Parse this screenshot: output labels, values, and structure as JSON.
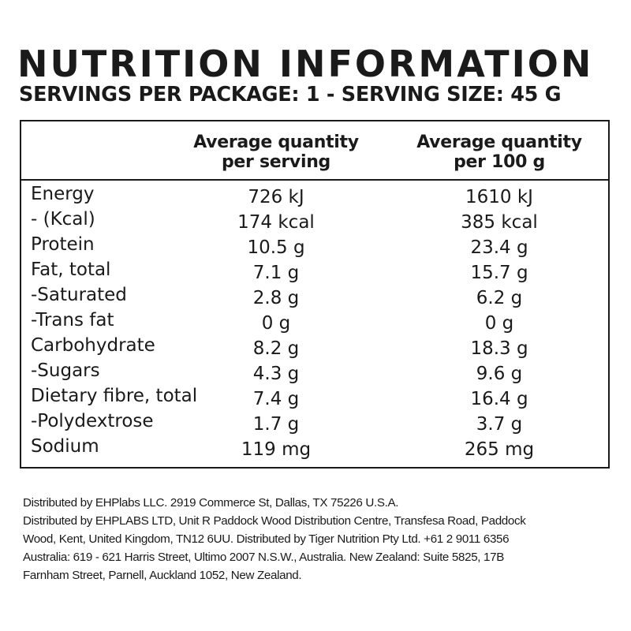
{
  "title": "NUTRITION INFORMATION",
  "subtitle": "SERVINGS PER PACKAGE: 1 - SERVING SIZE: 45 G",
  "table": {
    "columns": [
      {
        "line1": "Average quantity",
        "line2": "per serving"
      },
      {
        "line1": "Average quantity",
        "line2": "per 100 g"
      }
    ],
    "rows": [
      {
        "label": "Energy",
        "per_serving": "726 kJ",
        "per_100g": "1610 kJ"
      },
      {
        "label": "- (Kcal)",
        "per_serving": "174 kcal",
        "per_100g": "385 kcal"
      },
      {
        "label": "Protein",
        "per_serving": "10.5 g",
        "per_100g": "23.4 g"
      },
      {
        "label": "Fat, total",
        "per_serving": "7.1 g",
        "per_100g": "15.7 g"
      },
      {
        "label": "-Saturated",
        "per_serving": "2.8 g",
        "per_100g": "6.2 g"
      },
      {
        "label": "-Trans fat",
        "per_serving": "0 g",
        "per_100g": "0 g"
      },
      {
        "label": "Carbohydrate",
        "per_serving": "8.2 g",
        "per_100g": "18.3 g"
      },
      {
        "label": "-Sugars",
        "per_serving": "4.3 g",
        "per_100g": "9.6 g"
      },
      {
        "label": "Dietary fibre, total",
        "per_serving": "7.4 g",
        "per_100g": "16.4 g"
      },
      {
        "label": "-Polydextrose",
        "per_serving": "1.7 g",
        "per_100g": "3.7 g"
      },
      {
        "label": "Sodium",
        "per_serving": "119 mg",
        "per_100g": "265 mg"
      }
    ]
  },
  "footer": {
    "lines": [
      "Distributed by EHPlabs LLC. 2919 Commerce St, Dallas, TX 75226 U.S.A.",
      "Distributed by EHPLABS LTD, Unit R Paddock Wood Distribution Centre, Transfesa Road, Paddock",
      "Wood, Kent, United Kingdom, TN12 6UU. Distributed by Tiger Nutrition Pty Ltd. +61 2 9011 6356",
      "Australia: 619 - 621 Harris Street, Ultimo 2007 N.S.W., Australia. New Zealand: Suite 5825, 17B",
      "Farnham Street, Parnell, Auckland 1052, New Zealand."
    ]
  }
}
